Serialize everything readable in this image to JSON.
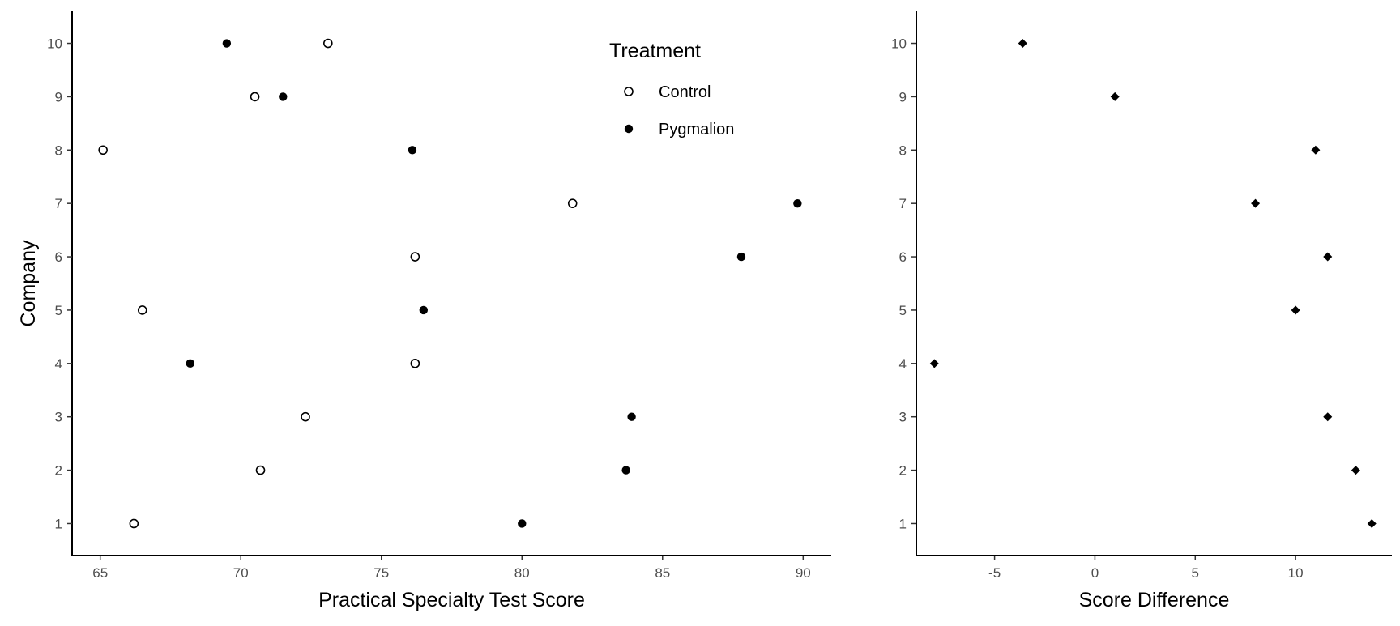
{
  "chart_data": [
    {
      "type": "scatter",
      "xlabel": "Practical Specialty Test Score",
      "ylabel": "Company",
      "xlim": [
        64,
        91
      ],
      "ylim": [
        0.4,
        10.6
      ],
      "xticks": [
        65,
        70,
        75,
        80,
        85,
        90
      ],
      "yticks": [
        1,
        2,
        3,
        4,
        5,
        6,
        7,
        8,
        9,
        10
      ],
      "grid": false,
      "legend": {
        "title": "Treatment",
        "position": "top-right",
        "entries": [
          {
            "label": "Control",
            "marker": "open-circle"
          },
          {
            "label": "Pygmalion",
            "marker": "filled-circle"
          }
        ]
      },
      "series": [
        {
          "name": "Control",
          "marker": "open-circle",
          "points": [
            {
              "x": 66.2,
              "y": 1
            },
            {
              "x": 70.7,
              "y": 2
            },
            {
              "x": 72.3,
              "y": 3
            },
            {
              "x": 76.2,
              "y": 4
            },
            {
              "x": 66.5,
              "y": 5
            },
            {
              "x": 76.2,
              "y": 6
            },
            {
              "x": 81.8,
              "y": 7
            },
            {
              "x": 65.1,
              "y": 8
            },
            {
              "x": 70.5,
              "y": 9
            },
            {
              "x": 73.1,
              "y": 10
            }
          ]
        },
        {
          "name": "Pygmalion",
          "marker": "filled-circle",
          "points": [
            {
              "x": 80.0,
              "y": 1
            },
            {
              "x": 83.7,
              "y": 2
            },
            {
              "x": 83.9,
              "y": 3
            },
            {
              "x": 68.2,
              "y": 4
            },
            {
              "x": 76.5,
              "y": 5
            },
            {
              "x": 87.8,
              "y": 6
            },
            {
              "x": 89.8,
              "y": 7
            },
            {
              "x": 76.1,
              "y": 8
            },
            {
              "x": 71.5,
              "y": 9
            },
            {
              "x": 69.5,
              "y": 10
            }
          ]
        }
      ]
    },
    {
      "type": "scatter",
      "xlabel": "Score Difference",
      "ylabel": "",
      "xlim": [
        -8.9,
        14.8
      ],
      "ylim": [
        0.4,
        10.6
      ],
      "xticks": [
        -5,
        0,
        5,
        10
      ],
      "yticks": [
        1,
        2,
        3,
        4,
        5,
        6,
        7,
        8,
        9,
        10
      ],
      "grid": false,
      "series": [
        {
          "marker": "filled-diamond",
          "points": [
            {
              "x": 13.8,
              "y": 1
            },
            {
              "x": 13.0,
              "y": 2
            },
            {
              "x": 11.6,
              "y": 3
            },
            {
              "x": -8.0,
              "y": 4
            },
            {
              "x": 10.0,
              "y": 5
            },
            {
              "x": 11.6,
              "y": 6
            },
            {
              "x": 8.0,
              "y": 7
            },
            {
              "x": 11.0,
              "y": 8
            },
            {
              "x": 1.0,
              "y": 9
            },
            {
              "x": -3.6,
              "y": 10
            }
          ]
        }
      ]
    }
  ]
}
